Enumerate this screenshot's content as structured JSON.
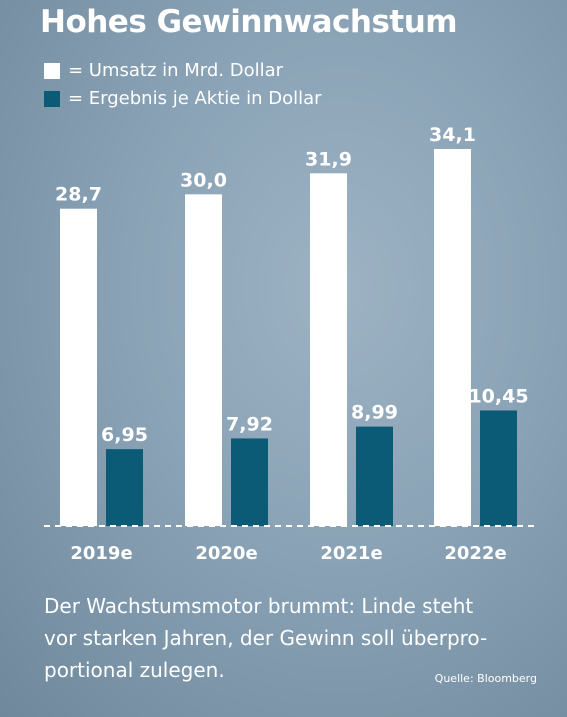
{
  "title": "Hohes Gewinnwachstum",
  "legend": [
    {
      "label": "= Umsatz in Mrd. Dollar",
      "color": "#ffffff"
    },
    {
      "label": "= Ergebnis je Aktie in Dollar",
      "color": "#0b5a76"
    }
  ],
  "chart_data": {
    "type": "bar",
    "categories": [
      "2019e",
      "2020e",
      "2021e",
      "2022e"
    ],
    "series": [
      {
        "name": "Umsatz in Mrd. Dollar",
        "values": [
          28.7,
          30.0,
          31.9,
          34.1
        ],
        "labels": [
          "28,7",
          "30,0",
          "31,9",
          "34,1"
        ],
        "color": "#ffffff"
      },
      {
        "name": "Ergebnis je Aktie in Dollar",
        "values": [
          6.95,
          7.92,
          8.99,
          10.45
        ],
        "labels": [
          "6,95",
          "7,92",
          "8,99",
          "10,45"
        ],
        "color": "#0b5a76"
      }
    ],
    "ylim": [
      0,
      40
    ],
    "grid": false
  },
  "caption": {
    "line1": "Der Wachstumsmotor brummt: Linde steht",
    "line2": "vor starken Jahren, der Gewinn soll überpro-",
    "line3": "portional zulegen."
  },
  "source": "Quelle: Bloomberg"
}
